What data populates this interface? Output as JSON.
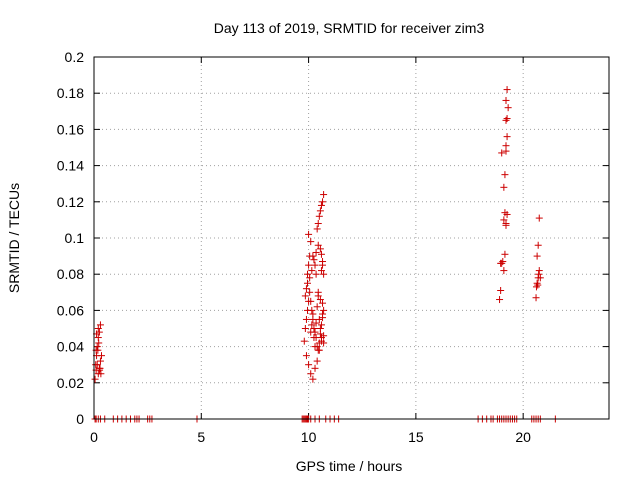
{
  "chart_data": {
    "type": "scatter",
    "title": "Day 113 of 2019, SRMTID for receiver zim3",
    "xlabel": "GPS time / hours",
    "ylabel": "SRMTID / TECUs",
    "xlim": [
      0,
      24
    ],
    "ylim": [
      0,
      0.2
    ],
    "grid": true,
    "x_ticks": [
      0,
      5,
      10,
      15,
      20
    ],
    "y_ticks": [
      0,
      0.02,
      0.04,
      0.06,
      0.08,
      0.1,
      0.12,
      0.14,
      0.16,
      0.18,
      0.2
    ],
    "x_tick_labels": [
      "0",
      "5",
      "10",
      "15",
      "20"
    ],
    "y_tick_labels": [
      "0",
      "0.02",
      "0.04",
      "0.06",
      "0.08",
      "0.1",
      "0.12",
      "0.14",
      "0.16",
      "0.18",
      "0.2"
    ],
    "marker": "+",
    "marker_color": "#cc0000",
    "series": [
      {
        "name": "SRMTID",
        "x": [
          0.05,
          0.1,
          0.15,
          0.2,
          0.25,
          0.3,
          0.35,
          0.1,
          0.15,
          0.2,
          0.25,
          0.3,
          0.08,
          0.12,
          0.18,
          0.22,
          0.28,
          0.32,
          0.12,
          0.2,
          0.26,
          9.8,
          9.85,
          9.9,
          9.95,
          10.0,
          10.05,
          10.1,
          10.15,
          10.2,
          10.25,
          10.3,
          10.35,
          10.4,
          10.45,
          10.5,
          10.55,
          10.6,
          10.65,
          10.7,
          9.85,
          9.9,
          9.95,
          10.0,
          10.05,
          10.1,
          10.15,
          10.2,
          10.25,
          10.3,
          10.35,
          10.4,
          10.45,
          10.5,
          10.55,
          10.6,
          10.65,
          10.7,
          9.9,
          10.0,
          10.1,
          10.2,
          10.3,
          10.4,
          10.5,
          10.6,
          10.7,
          9.95,
          10.05,
          10.15,
          10.25,
          10.35,
          10.45,
          10.55,
          10.65,
          10.4,
          10.45,
          10.5,
          10.55,
          10.6,
          10.65,
          10.7,
          10.6,
          10.65,
          10.7,
          10.6,
          10.65,
          10.0,
          10.1,
          10.2,
          10.3,
          10.35,
          10.45,
          10.55,
          18.9,
          18.95,
          19.0,
          19.05,
          19.1,
          19.15,
          19.2,
          19.25,
          19.1,
          19.15,
          19.2,
          19.2,
          19.25,
          19.2,
          19.25,
          19.3,
          19.2,
          19.25,
          19.1,
          19.15,
          19.2,
          19.0,
          18.95,
          20.6,
          20.62,
          20.65,
          20.7,
          20.72,
          20.75,
          20.8,
          20.65,
          20.7,
          20.75,
          20.68,
          0.05,
          0.1,
          0.2,
          0.3,
          0.5,
          0.9,
          1.1,
          1.3,
          1.5,
          1.7,
          1.9,
          2.0,
          2.1,
          2.5,
          2.6,
          2.7,
          4.8,
          9.7,
          9.75,
          9.8,
          9.85,
          9.9,
          9.95,
          10.0,
          10.1,
          10.3,
          10.5,
          10.8,
          11.0,
          11.2,
          11.4,
          17.9,
          18.1,
          18.3,
          18.5,
          18.6,
          18.8,
          18.9,
          19.0,
          19.1,
          19.2,
          19.3,
          19.4,
          19.5,
          19.6,
          19.7,
          20.4,
          20.5,
          20.6,
          20.7,
          20.8,
          21.5
        ],
        "y": [
          0.022,
          0.027,
          0.03,
          0.025,
          0.028,
          0.032,
          0.035,
          0.038,
          0.04,
          0.045,
          0.048,
          0.052,
          0.03,
          0.035,
          0.038,
          0.042,
          0.028,
          0.025,
          0.047,
          0.05,
          0.027,
          0.043,
          0.05,
          0.055,
          0.06,
          0.065,
          0.07,
          0.048,
          0.052,
          0.058,
          0.045,
          0.04,
          0.053,
          0.062,
          0.068,
          0.055,
          0.05,
          0.045,
          0.058,
          0.042,
          0.068,
          0.072,
          0.08,
          0.085,
          0.09,
          0.065,
          0.06,
          0.055,
          0.05,
          0.048,
          0.045,
          0.04,
          0.038,
          0.042,
          0.047,
          0.052,
          0.056,
          0.06,
          0.035,
          0.03,
          0.025,
          0.022,
          0.028,
          0.032,
          0.038,
          0.043,
          0.046,
          0.075,
          0.078,
          0.082,
          0.088,
          0.092,
          0.096,
          0.094,
          0.087,
          0.105,
          0.108,
          0.112,
          0.115,
          0.118,
          0.12,
          0.124,
          0.082,
          0.085,
          0.08,
          0.091,
          0.064,
          0.102,
          0.098,
          0.09,
          0.085,
          0.08,
          0.07,
          0.066,
          0.066,
          0.071,
          0.086,
          0.087,
          0.082,
          0.091,
          0.107,
          0.113,
          0.128,
          0.135,
          0.148,
          0.151,
          0.156,
          0.165,
          0.166,
          0.172,
          0.176,
          0.182,
          0.11,
          0.114,
          0.108,
          0.147,
          0.086,
          0.067,
          0.073,
          0.075,
          0.078,
          0.08,
          0.082,
          0.078,
          0.09,
          0.096,
          0.111,
          0.074,
          0,
          0,
          0,
          0,
          0,
          0,
          0,
          0,
          0,
          0,
          0,
          0,
          0,
          0,
          0,
          0,
          0,
          0,
          0,
          0,
          0,
          0,
          0,
          0,
          0,
          0,
          0,
          0,
          0,
          0,
          0,
          0,
          0,
          0,
          0,
          0,
          0,
          0,
          0,
          0,
          0,
          0,
          0,
          0,
          0,
          0,
          0,
          0,
          0,
          0,
          0,
          0
        ]
      }
    ]
  }
}
